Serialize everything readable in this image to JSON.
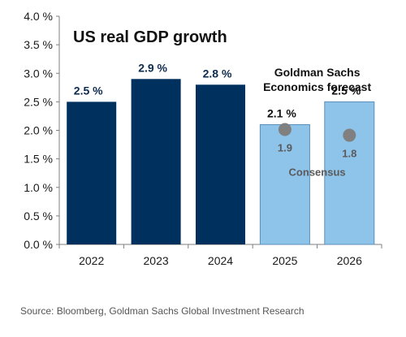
{
  "chart_data": {
    "type": "bar",
    "title": "US real GDP growth",
    "categories": [
      "2022",
      "2023",
      "2024",
      "2025",
      "2026"
    ],
    "series": [
      {
        "values": [
          2.5,
          2.9,
          2.8,
          2.1,
          2.5
        ],
        "labels": [
          "2.5 %",
          "2.9 %",
          "2.8 %",
          "2.1 %",
          "2.5 %"
        ]
      }
    ],
    "consensus": {
      "name": "Consensus",
      "categories": [
        "2025",
        "2026"
      ],
      "values": [
        1.9,
        1.8
      ],
      "labels": [
        "1.9",
        "1.8"
      ]
    },
    "forecast_annotation": [
      "Goldman Sachs",
      "Economics forecast"
    ],
    "ylim": [
      0,
      4
    ],
    "yticks": [
      "0.0 %",
      "0.5 %",
      "1.0 %",
      "1.5 %",
      "2.0 %",
      "2.5 %",
      "3.0 %",
      "3.5 %",
      "4.0 %"
    ],
    "colors": {
      "actual": "#00305e",
      "forecast": "#8ec3ea",
      "forecast_border": "#5c8fb8",
      "consensus_marker": "#808080",
      "axis": "#7f7f7f"
    },
    "forecast_start_index": 3
  },
  "source": "Source: Bloomberg, Goldman Sachs Global Investment Research"
}
